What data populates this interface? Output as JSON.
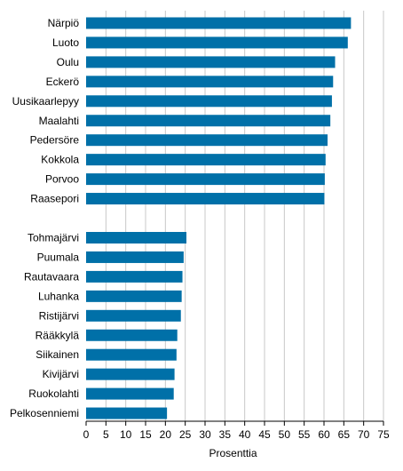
{
  "chart_data": {
    "type": "bar",
    "orientation": "horizontal",
    "xlabel": "Prosenttia",
    "xlim": [
      0,
      75
    ],
    "xticks": [
      0,
      5,
      10,
      15,
      20,
      25,
      30,
      35,
      40,
      45,
      50,
      55,
      60,
      65,
      70,
      75
    ],
    "grid": "vertical",
    "bar_color": "#0070a8",
    "grid_color": "#c8c8c8",
    "groups": [
      {
        "categories": [
          "Närpiö",
          "Luoto",
          "Oulu",
          "Eckerö",
          "Uusikaarlepyy",
          "Maalahti",
          "Pedersöre",
          "Kokkola",
          "Porvoo",
          "Raasepori"
        ],
        "values": [
          66.8,
          66.0,
          62.8,
          62.3,
          62.0,
          61.6,
          60.9,
          60.4,
          60.2,
          60.1
        ]
      },
      {
        "categories": [
          "Tohmajärvi",
          "Puumala",
          "Rautavaara",
          "Luhanka",
          "Ristijärvi",
          "Rääkkylä",
          "Siikainen",
          "Kivijärvi",
          "Ruokolahti",
          "Pelkosenniemi"
        ],
        "values": [
          25.3,
          24.6,
          24.3,
          24.1,
          23.9,
          23.0,
          22.8,
          22.3,
          22.1,
          20.4
        ]
      }
    ]
  }
}
